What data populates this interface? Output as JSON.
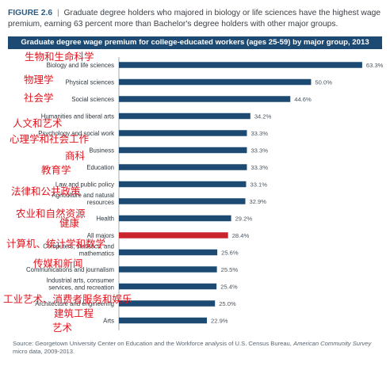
{
  "figure": {
    "number": "FIGURE 2.6",
    "separator": "|",
    "caption": "Graduate degree holders who majored in biology or life sciences have the highest wage premium, earning 63 percent more than Bachelor's degree holders with other major groups."
  },
  "chart_data": {
    "type": "bar",
    "orientation": "horizontal",
    "title": "Graduate degree wage premium for college-educated workers (ages 25-59) by major group, 2013",
    "value_suffix": "%",
    "xlim": [
      0,
      66
    ],
    "grid": false,
    "categories": [
      "Biology and life sciences",
      "Physical sciences",
      "Social sciences",
      "Humanities and liberal arts",
      "Psychology and social work",
      "Business",
      "Education",
      "Law and public policy",
      "Agriculture and natural resources",
      "Health",
      "All majors",
      "Computers, statistics, and mathematics",
      "Communications and journalism",
      "Industrial arts, consumer services, and recreation",
      "Architecture and engineering",
      "Arts"
    ],
    "values": [
      63.3,
      50.0,
      44.6,
      34.2,
      33.3,
      33.3,
      33.3,
      33.1,
      32.9,
      29.2,
      28.4,
      25.6,
      25.5,
      25.4,
      25.0,
      22.9
    ],
    "value_labels": [
      "63.3%",
      "50.0%",
      "44.6%",
      "34.2%",
      "33.3%",
      "33.3%",
      "33.3%",
      "33.1%",
      "32.9%",
      "29.2%",
      "28.4%",
      "25.6%",
      "25.5%",
      "25.4%",
      "25.0%",
      "22.9%"
    ],
    "highlight": "All majors",
    "colors": {
      "bar": "#1c4a73",
      "highlight": "#c8252c"
    },
    "annotations": [
      "生物和生命科学",
      "物理学",
      "社会学",
      "人文和艺术",
      "心理学和社会工作",
      "商科",
      "教育学",
      "法律和公共政策",
      "农业和自然资源",
      "健康",
      "计算机、统计学和数学",
      "传媒和新闻",
      "工业艺术、消费者服务和娱乐",
      "建筑工程",
      "艺术"
    ],
    "annotation_color": "#e0151e"
  },
  "source": {
    "prefix": "Source: Georgetown University Center on Education and the Workforce analysis of U.S. Census Bureau, ",
    "survey": "American Community Survey",
    "suffix": " micro data, 2009-2013."
  }
}
